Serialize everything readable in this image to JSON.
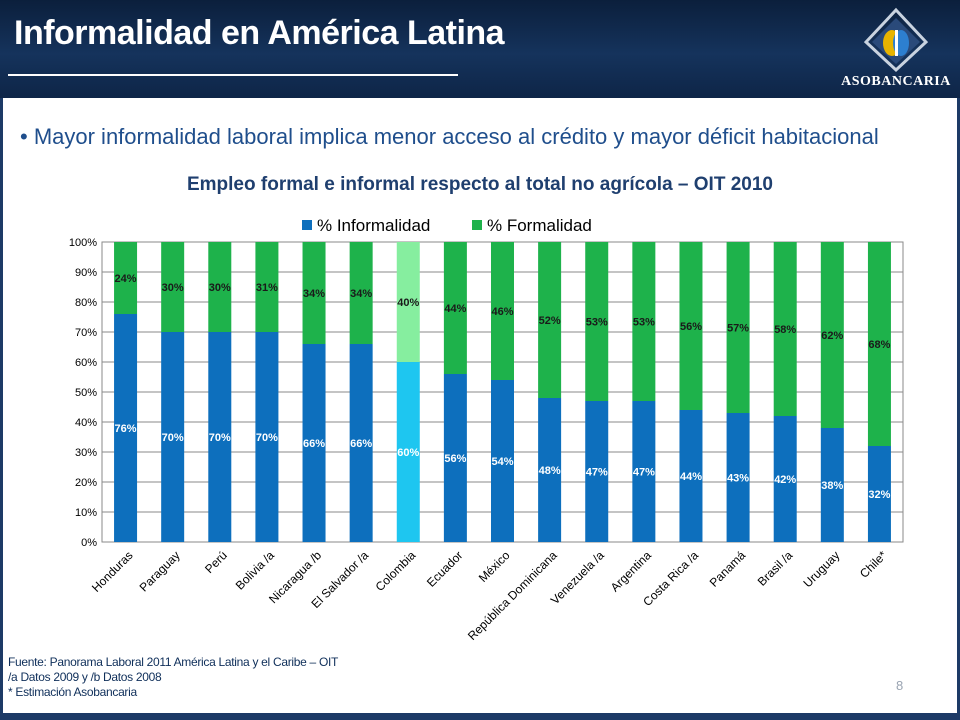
{
  "header": {
    "title": "Informalidad en América Latina",
    "logo_text": "ASOBANCARIA"
  },
  "bullet": "• Mayor informalidad laboral implica menor acceso al crédito y mayor déficit habitacional",
  "chart_data": {
    "type": "bar",
    "stacked": true,
    "title": "Empleo formal e informal respecto al total no agrícola – OIT 2010",
    "categories": [
      "Honduras",
      "Paraguay",
      "Perú",
      "Bolivia /a",
      "Nicaragua /b",
      "El Salvador /a",
      "Colombia",
      "Ecuador",
      "México",
      "República Dominicana",
      "Venezuela /a",
      "Argentina",
      "Costa Rica /a",
      "Panamá",
      "Brasil /a",
      "Uruguay",
      "Chile*"
    ],
    "series": [
      {
        "name": "% Informalidad",
        "color": "#0d6fbd",
        "highlight_color": "#1ec6f0",
        "values": [
          76,
          70,
          70,
          70,
          66,
          66,
          60,
          56,
          54,
          48,
          47,
          47,
          44,
          43,
          42,
          38,
          32
        ],
        "labels": [
          "76%",
          "70%",
          "70%",
          "70%",
          "66%",
          "66%",
          "60%",
          "56%",
          "54%",
          "48%",
          "47%",
          "47%",
          "44%",
          "43%",
          "42%",
          "38%",
          "32%"
        ]
      },
      {
        "name": "% Formalidad",
        "color": "#1eb24b",
        "highlight_color": "#86ee9f",
        "values": [
          24,
          30,
          30,
          31,
          34,
          34,
          40,
          44,
          46,
          52,
          53,
          53,
          56,
          57,
          58,
          62,
          68
        ],
        "labels": [
          "24%",
          "30%",
          "30%",
          "31%",
          "34%",
          "34%",
          "40%",
          "44%",
          "46%",
          "52%",
          "53%",
          "53%",
          "56%",
          "57%",
          "58%",
          "62%",
          "68%"
        ]
      }
    ],
    "highlight_category": "Colombia",
    "ylim": [
      0,
      100
    ],
    "yticks": [
      "0%",
      "10%",
      "20%",
      "30%",
      "40%",
      "50%",
      "60%",
      "70%",
      "80%",
      "90%",
      "100%"
    ],
    "grid": true,
    "legend": "top"
  },
  "footer": {
    "line1": "Fuente: Panorama Laboral 2011 América Latina y el Caribe – OIT",
    "line2": "/a Datos 2009 y /b Datos 2008",
    "line3": "* Estimación Asobancaria"
  },
  "page_number": "8"
}
